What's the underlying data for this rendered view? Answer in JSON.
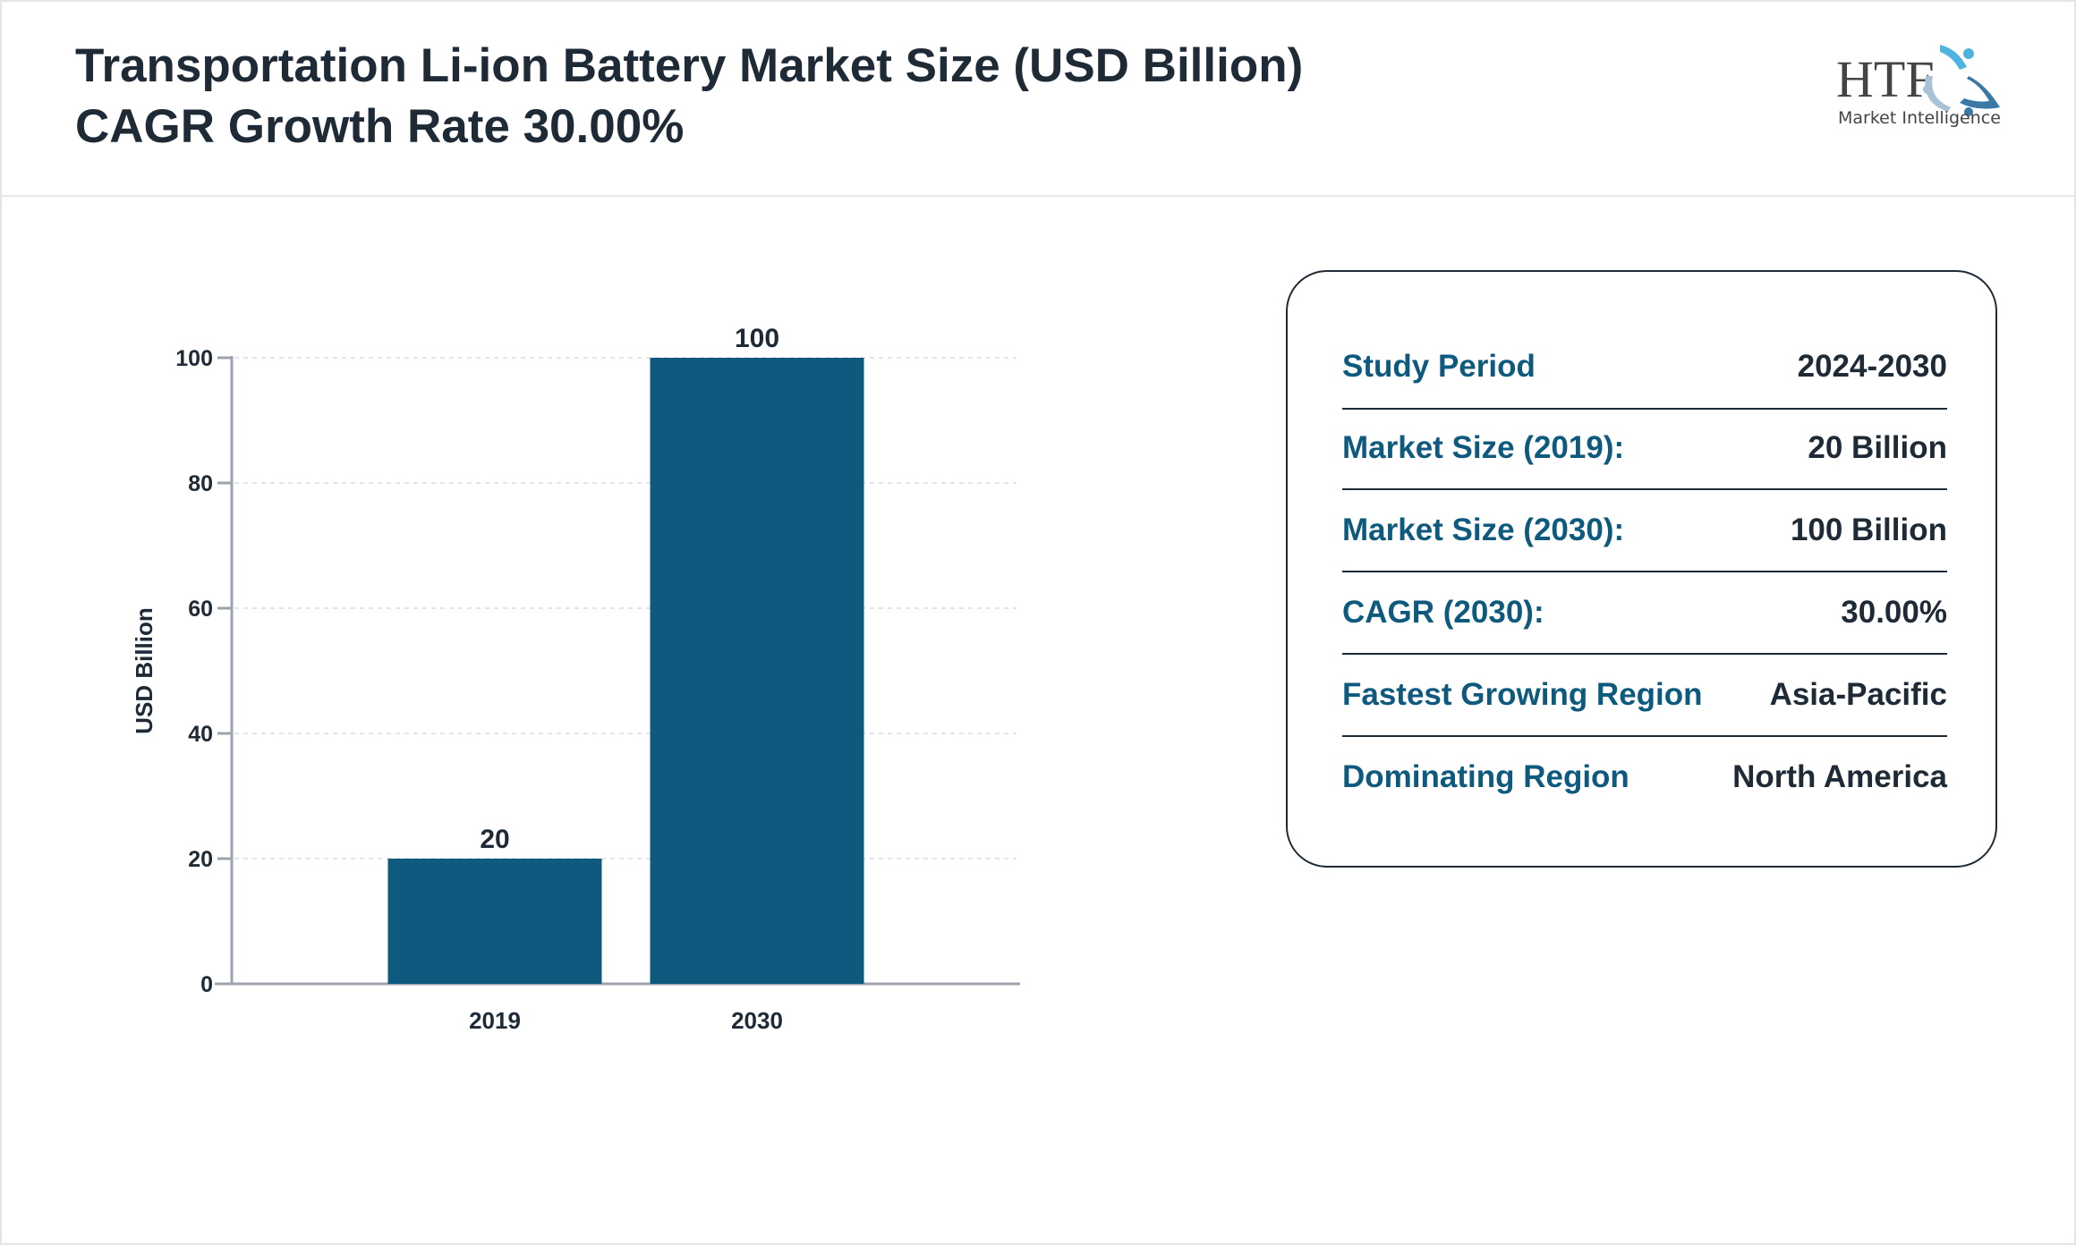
{
  "header": {
    "title": "Transportation Li-ion Battery Market Size (USD Billion) CAGR Growth Rate 30.00%",
    "logo_text": "HTF",
    "logo_subtext": "Market Intelligence"
  },
  "colors": {
    "bar": "#0e5a7e",
    "label": "#0e5a7e",
    "text": "#1f2a37",
    "axis": "#9ca3af"
  },
  "chart_data": {
    "type": "bar",
    "categories": [
      "2019",
      "2030"
    ],
    "values": [
      20,
      100
    ],
    "data_labels": [
      "20",
      "100"
    ],
    "title": "",
    "xlabel": "",
    "ylabel": "USD Billion",
    "ylim": [
      0,
      100
    ],
    "yticks": [
      0,
      20,
      40,
      60,
      80,
      100
    ],
    "grid": true
  },
  "info": {
    "rows": [
      {
        "label": "Study Period",
        "value": "2024-2030"
      },
      {
        "label": "Market Size (2019):",
        "value": "20 Billion"
      },
      {
        "label": "Market Size (2030):",
        "value": "100 Billion"
      },
      {
        "label": "CAGR (2030):",
        "value": "30.00%"
      },
      {
        "label": "Fastest Growing Region",
        "value": "Asia-Pacific"
      },
      {
        "label": "Dominating Region",
        "value": "North America"
      }
    ]
  }
}
